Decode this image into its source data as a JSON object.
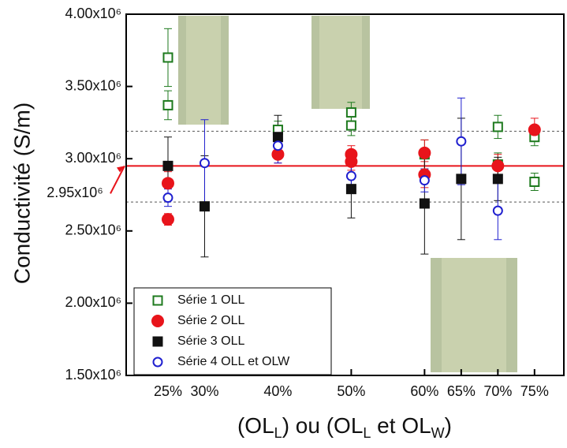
{
  "chart_data": {
    "type": "scatter",
    "y_label": "Conductivité (S/m)",
    "x_label": [
      "(OL",
      "L",
      ") ou (OL",
      "L",
      " et OL",
      "W",
      ")"
    ],
    "xlim": [
      19.3,
      79.0
    ],
    "xticks": [
      {
        "value": 25,
        "label": "25%"
      },
      {
        "value": 30,
        "label": "30%"
      },
      {
        "value": 40,
        "label": "40%"
      },
      {
        "value": 50,
        "label": "50%"
      },
      {
        "value": 60,
        "label": "60%"
      },
      {
        "value": 65,
        "label": "65%"
      },
      {
        "value": 70,
        "label": "70%"
      },
      {
        "value": 75,
        "label": "75%"
      }
    ],
    "ylim": [
      1500000,
      4000000
    ],
    "yticks": [
      {
        "value": 1500000,
        "label": "1.50x10⁶"
      },
      {
        "value": 2000000,
        "label": "2.00x10⁶"
      },
      {
        "value": 2500000,
        "label": "2.50x10⁶"
      },
      {
        "value": 3000000,
        "label": "3.00x10⁶"
      },
      {
        "value": 3500000,
        "label": "3.50x10⁶"
      },
      {
        "value": 4000000,
        "label": "4.00x10⁶"
      }
    ],
    "ref_lines": [
      {
        "value": 2950000,
        "color": "#e8141b",
        "style": "solid",
        "label": "2.95x10⁶"
      },
      {
        "value": 3190000,
        "color": "#555555",
        "style": "dashed"
      },
      {
        "value": 2700000,
        "color": "#555555",
        "style": "dashed"
      }
    ],
    "legend": "lower left",
    "series": [
      {
        "name": "Série 1 OLL",
        "color": "#1e7a1e",
        "marker": "square-open",
        "x": [
          25,
          25,
          40,
          50,
          50,
          60,
          70,
          70,
          75,
          75
        ],
        "values": [
          3700000,
          3370000,
          3200000,
          3320000,
          3230000,
          3030000,
          3220000,
          2960000,
          3150000,
          2840000
        ],
        "errors": [
          200000,
          100000,
          60000,
          70000,
          70000,
          100000,
          80000,
          80000,
          60000,
          60000
        ]
      },
      {
        "name": "Série 2 OLL",
        "color": "#e8141b",
        "marker": "circle",
        "x": [
          25,
          25,
          40,
          50,
          50,
          60,
          60,
          70,
          75
        ],
        "values": [
          2830000,
          2580000,
          3030000,
          3030000,
          2980000,
          3040000,
          2890000,
          2950000,
          3200000
        ],
        "errors": [
          80000,
          40000,
          60000,
          60000,
          60000,
          90000,
          90000,
          80000,
          80000
        ]
      },
      {
        "name": "Série 3 OLL",
        "color": "#111111",
        "marker": "square",
        "x": [
          25,
          30,
          40,
          50,
          60,
          65,
          70
        ],
        "values": [
          2950000,
          2670000,
          3150000,
          2790000,
          2690000,
          2860000,
          2860000
        ],
        "errors": [
          200000,
          350000,
          150000,
          200000,
          350000,
          420000,
          150000
        ]
      },
      {
        "name": "Série 4 OLL et OLW",
        "color": "#1f1fcf",
        "marker": "circle-open",
        "x": [
          25,
          30,
          40,
          50,
          60,
          65,
          70
        ],
        "values": [
          2730000,
          2970000,
          3090000,
          2880000,
          2850000,
          3120000,
          2640000
        ],
        "errors": [
          60000,
          300000,
          120000,
          80000,
          80000,
          300000,
          200000
        ]
      }
    ]
  }
}
